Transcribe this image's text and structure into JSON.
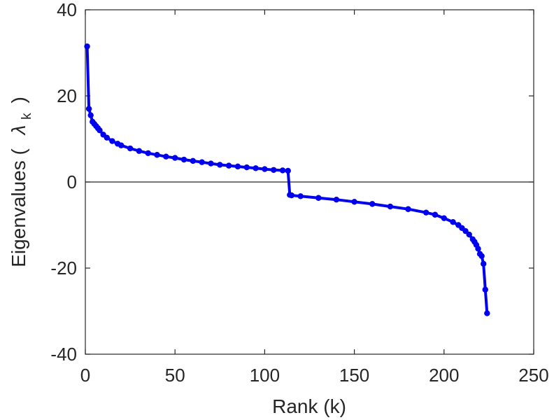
{
  "chart_data": {
    "type": "line",
    "xlabel": "Rank (k)",
    "ylabel": {
      "prefix": "Eigenvalues (",
      "symbol": "λ",
      "subscript": "k",
      "suffix": ")"
    },
    "xlim": [
      0,
      250
    ],
    "ylim": [
      -40,
      40
    ],
    "xticks": [
      0,
      50,
      100,
      150,
      200,
      250
    ],
    "yticks": [
      -40,
      -20,
      0,
      20,
      40
    ],
    "grid": false,
    "zero_line": true,
    "series": [
      {
        "color": "#0000ee",
        "marker": "circle",
        "x": [
          1,
          2,
          3,
          4,
          5,
          6,
          7,
          8,
          10,
          12,
          15,
          18,
          20,
          25,
          30,
          35,
          40,
          45,
          50,
          55,
          60,
          65,
          70,
          75,
          80,
          85,
          90,
          95,
          100,
          105,
          110,
          113,
          114,
          115,
          120,
          130,
          140,
          150,
          160,
          170,
          180,
          190,
          195,
          200,
          205,
          208,
          210,
          212,
          214,
          216,
          217,
          218,
          219,
          220,
          221,
          222,
          223,
          224
        ],
        "y": [
          31.5,
          17,
          15.5,
          14,
          13.5,
          13,
          12.5,
          12,
          11,
          10.3,
          9.5,
          8.9,
          8.5,
          7.8,
          7.2,
          6.7,
          6.3,
          5.9,
          5.6,
          5.2,
          4.9,
          4.6,
          4.3,
          4.0,
          3.8,
          3.6,
          3.4,
          3.2,
          3.0,
          2.8,
          2.7,
          2.6,
          -3.0,
          -3.1,
          -3.3,
          -3.7,
          -4.1,
          -4.6,
          -5.1,
          -5.7,
          -6.3,
          -7.1,
          -7.6,
          -8.4,
          -9.3,
          -10.0,
          -10.7,
          -11.4,
          -12.2,
          -13.3,
          -13.9,
          -14.6,
          -15.5,
          -16.7,
          -17.2,
          -19.0,
          -25.0,
          -30.5
        ]
      }
    ]
  }
}
